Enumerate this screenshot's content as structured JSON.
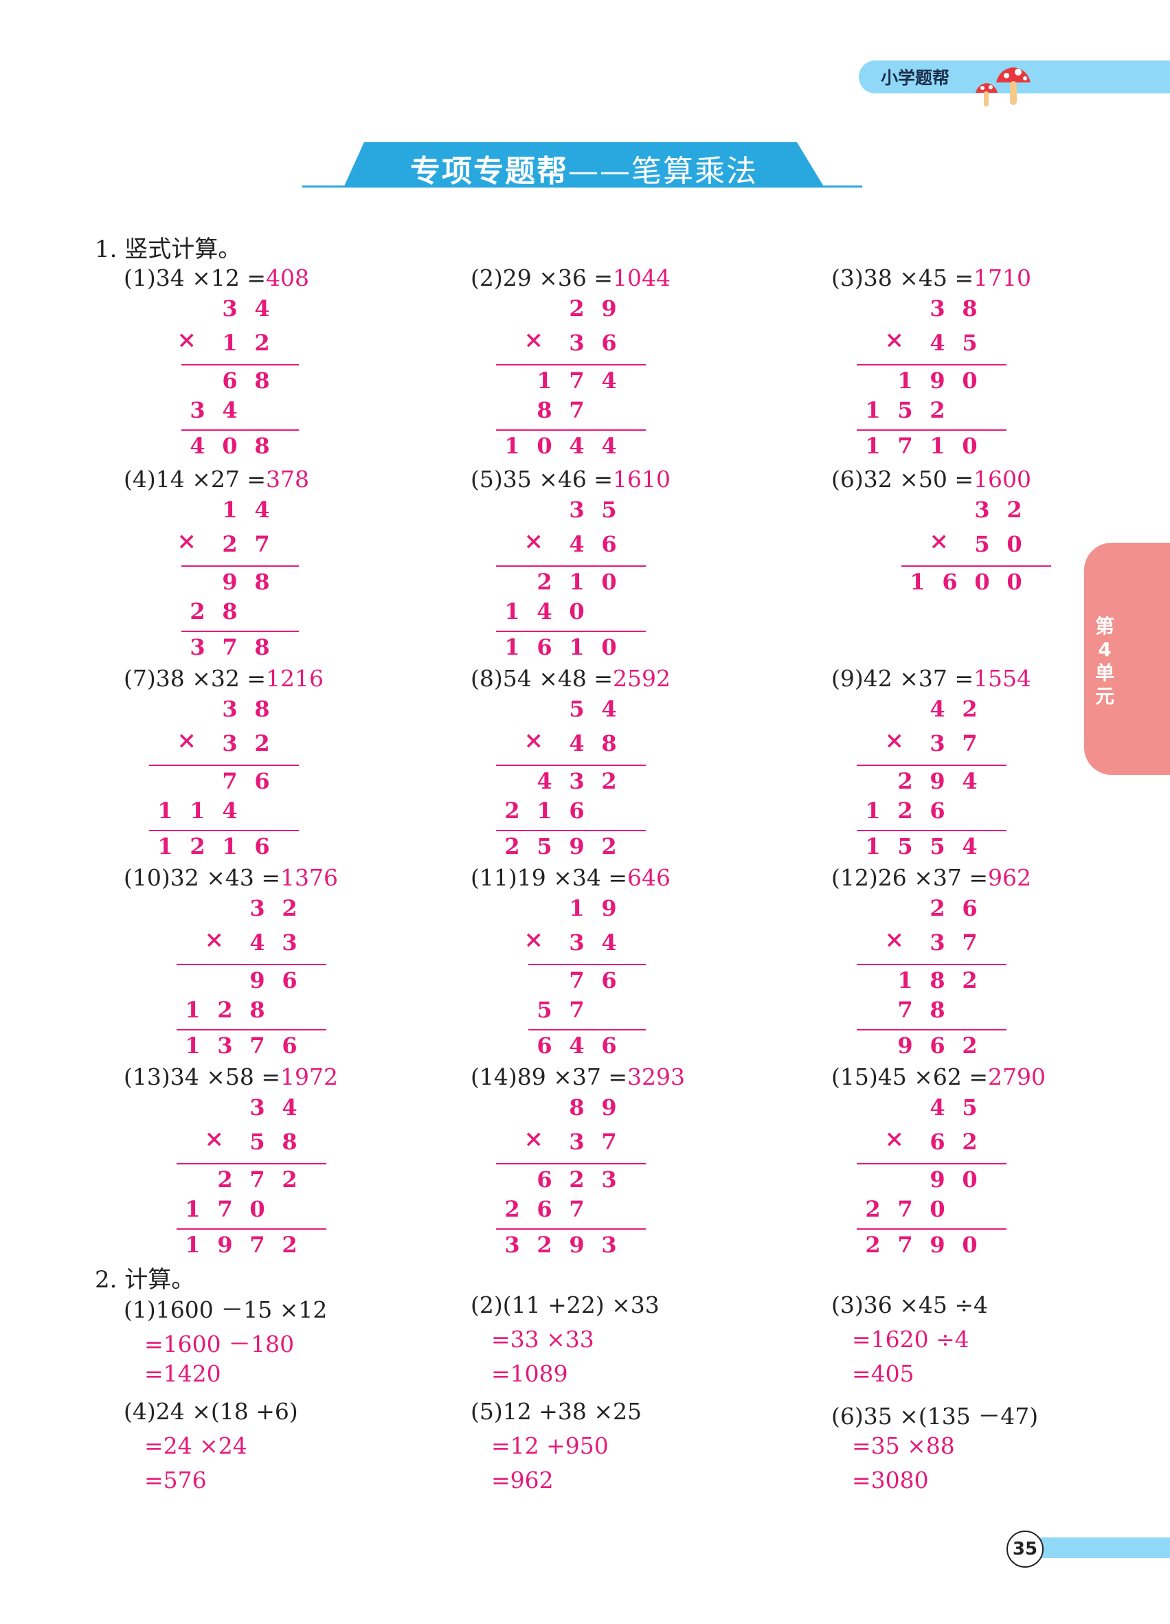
{
  "header": {
    "brand": "小学题帮"
  },
  "banner": {
    "title": "专项专题帮",
    "subtitle": "——笔算乘法"
  },
  "side_tab": {
    "text": "第4单元"
  },
  "page_number": "35",
  "section1": {
    "title": "1. 竖式计算。",
    "problems": [
      {
        "label": "(1)34 ×12 =",
        "answer": "408",
        "a": "34",
        "b": "12",
        "partials": [
          "68",
          "34"
        ],
        "result": "408"
      },
      {
        "label": "(2)29 ×36 =",
        "answer": "1044",
        "a": "29",
        "b": "36",
        "partials": [
          "174",
          "87"
        ],
        "result": "1044"
      },
      {
        "label": "(3)38 ×45 =",
        "answer": "1710",
        "a": "38",
        "b": "45",
        "partials": [
          "190",
          "152"
        ],
        "result": "1710"
      },
      {
        "label": "(4)14 ×27 =",
        "answer": "378",
        "a": "14",
        "b": "27",
        "partials": [
          "98",
          "28"
        ],
        "result": "378"
      },
      {
        "label": "(5)35 ×46 =",
        "answer": "1610",
        "a": "35",
        "b": "46",
        "partials": [
          "210",
          "140"
        ],
        "result": "1610"
      },
      {
        "label": "(6)32 ×50 =",
        "answer": "1600",
        "a": "32",
        "b": "50",
        "partials": [],
        "result": "1600"
      },
      {
        "label": "(7)38 ×32 =",
        "answer": "1216",
        "a": "38",
        "b": "32",
        "partials": [
          "76",
          "114"
        ],
        "result": "1216"
      },
      {
        "label": "(8)54 ×48 =",
        "answer": "2592",
        "a": "54",
        "b": "48",
        "partials": [
          "432",
          "216"
        ],
        "result": "2592"
      },
      {
        "label": "(9)42 ×37 =",
        "answer": "1554",
        "a": "42",
        "b": "37",
        "partials": [
          "294",
          "126"
        ],
        "result": "1554"
      },
      {
        "label": "(10)32 ×43 =",
        "answer": "1376",
        "a": "32",
        "b": "43",
        "partials": [
          "96",
          "128"
        ],
        "result": "1376"
      },
      {
        "label": "(11)19 ×34 =",
        "answer": "646",
        "a": "19",
        "b": "34",
        "partials": [
          "76",
          "57"
        ],
        "result": "646"
      },
      {
        "label": "(12)26 ×37 =",
        "answer": "962",
        "a": "26",
        "b": "37",
        "partials": [
          "182",
          "78"
        ],
        "result": "962"
      },
      {
        "label": "(13)34 ×58 =",
        "answer": "1972",
        "a": "34",
        "b": "58",
        "partials": [
          "272",
          "170"
        ],
        "result": "1972"
      },
      {
        "label": "(14)89 ×37 =",
        "answer": "3293",
        "a": "89",
        "b": "37",
        "partials": [
          "623",
          "267"
        ],
        "result": "3293"
      },
      {
        "label": "(15)45 ×62 =",
        "answer": "2790",
        "a": "45",
        "b": "62",
        "partials": [
          "90",
          "270"
        ],
        "result": "2790"
      }
    ],
    "times": "×"
  },
  "section2": {
    "title": "2. 计算。",
    "problems": [
      {
        "q": "(1)1600 －15 ×12",
        "steps": [
          "=1600 －180",
          "=1420"
        ]
      },
      {
        "q": "(2)(11 +22) ×33",
        "steps": [
          "=33 ×33",
          "=1089"
        ]
      },
      {
        "q": "(3)36 ×45 ÷4",
        "steps": [
          "=1620 ÷4",
          "=405"
        ]
      },
      {
        "q": "(4)24 ×(18 +6)",
        "steps": [
          "=24 ×24",
          "=576"
        ]
      },
      {
        "q": "(5)12 +38 ×25",
        "steps": [
          "=12 +950",
          "=962"
        ]
      },
      {
        "q": "(6)35 ×(135 －47)",
        "steps": [
          "=35 ×88",
          "=3080"
        ]
      }
    ]
  }
}
